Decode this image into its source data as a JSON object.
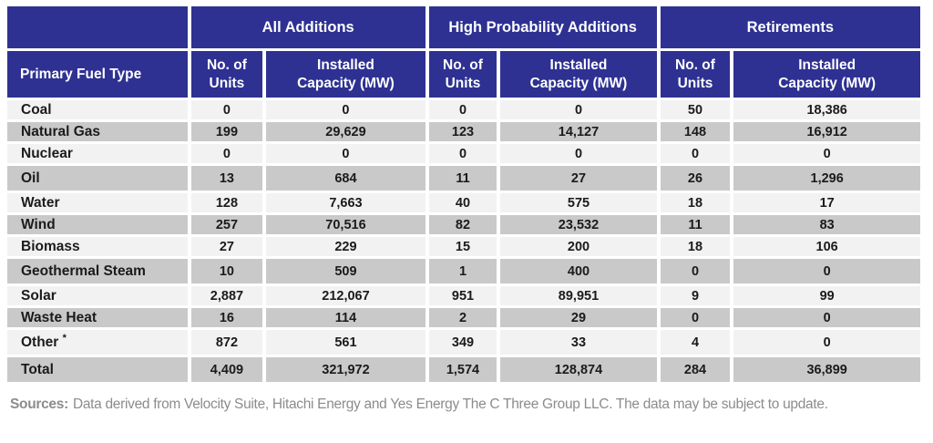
{
  "colors": {
    "header_blue": "#2E3192",
    "row_light": "#F2F2F2",
    "row_dark": "#C9C9C9",
    "text_dark": "#1b1b1b",
    "sources_gray": "#8C8C8C"
  },
  "table": {
    "groups": [
      {
        "label": "All Additions"
      },
      {
        "label": "High Probability Additions"
      },
      {
        "label": "Retirements"
      }
    ],
    "fuel_header": "Primary Fuel Type",
    "sub_headers": {
      "units": "No. of Units",
      "capacity": "Installed Capacity (MW)"
    },
    "rows": [
      {
        "label": "Coal",
        "values": [
          "0",
          "0",
          "0",
          "0",
          "50",
          "18,386"
        ]
      },
      {
        "label": "Natural Gas",
        "values": [
          "199",
          "29,629",
          "123",
          "14,127",
          "148",
          "16,912"
        ]
      },
      {
        "label": "Nuclear",
        "values": [
          "0",
          "0",
          "0",
          "0",
          "0",
          "0"
        ]
      },
      {
        "label": "Oil",
        "values": [
          "13",
          "684",
          "11",
          "27",
          "26",
          "1,296"
        ],
        "tall": true
      },
      {
        "label": "Water",
        "values": [
          "128",
          "7,663",
          "40",
          "575",
          "18",
          "17"
        ]
      },
      {
        "label": "Wind",
        "values": [
          "257",
          "70,516",
          "82",
          "23,532",
          "11",
          "83"
        ]
      },
      {
        "label": "Biomass",
        "values": [
          "27",
          "229",
          "15",
          "200",
          "18",
          "106"
        ]
      },
      {
        "label": "Geothermal Steam",
        "values": [
          "10",
          "509",
          "1",
          "400",
          "0",
          "0"
        ],
        "tall": true
      },
      {
        "label": "Solar",
        "values": [
          "2,887",
          "212,067",
          "951",
          "89,951",
          "9",
          "99"
        ]
      },
      {
        "label": "Waste Heat",
        "values": [
          "16",
          "114",
          "2",
          "29",
          "0",
          "0"
        ]
      },
      {
        "label": "Other",
        "note": "*",
        "values": [
          "872",
          "561",
          "349",
          "33",
          "4",
          "0"
        ],
        "tall": true
      },
      {
        "label": "Total",
        "values": [
          "4,409",
          "321,972",
          "1,574",
          "128,874",
          "284",
          "36,899"
        ],
        "tall": true,
        "is_total": true
      }
    ]
  },
  "footer": {
    "label": "Sources:",
    "text": "Data derived from Velocity Suite, Hitachi Energy and Yes Energy The C Three Group LLC.  The data may be subject to update."
  },
  "chart_data": {
    "type": "table",
    "title": "Generating unit additions and retirements by primary fuel type",
    "column_groups": [
      "All Additions",
      "High Probability Additions",
      "Retirements"
    ],
    "columns": [
      "Primary Fuel Type",
      "All Additions - No. of Units",
      "All Additions - Installed Capacity (MW)",
      "High Probability Additions - No. of Units",
      "High Probability Additions - Installed Capacity (MW)",
      "Retirements - No. of Units",
      "Retirements - Installed Capacity (MW)"
    ],
    "rows": [
      [
        "Coal",
        0,
        0,
        0,
        0,
        50,
        18386
      ],
      [
        "Natural Gas",
        199,
        29629,
        123,
        14127,
        148,
        16912
      ],
      [
        "Nuclear",
        0,
        0,
        0,
        0,
        0,
        0
      ],
      [
        "Oil",
        13,
        684,
        11,
        27,
        26,
        1296
      ],
      [
        "Water",
        128,
        7663,
        40,
        575,
        18,
        17
      ],
      [
        "Wind",
        257,
        70516,
        82,
        23532,
        11,
        83
      ],
      [
        "Biomass",
        27,
        229,
        15,
        200,
        18,
        106
      ],
      [
        "Geothermal Steam",
        10,
        509,
        1,
        400,
        0,
        0
      ],
      [
        "Solar",
        2887,
        212067,
        951,
        89951,
        9,
        99
      ],
      [
        "Waste Heat",
        16,
        114,
        2,
        29,
        0,
        0
      ],
      [
        "Other *",
        872,
        561,
        349,
        33,
        4,
        0
      ],
      [
        "Total",
        4409,
        321972,
        1574,
        128874,
        284,
        36899
      ]
    ],
    "notes": "Sources: Data derived from Velocity Suite, Hitachi Energy and Yes Energy The C Three Group LLC. The data may be subject to update."
  }
}
